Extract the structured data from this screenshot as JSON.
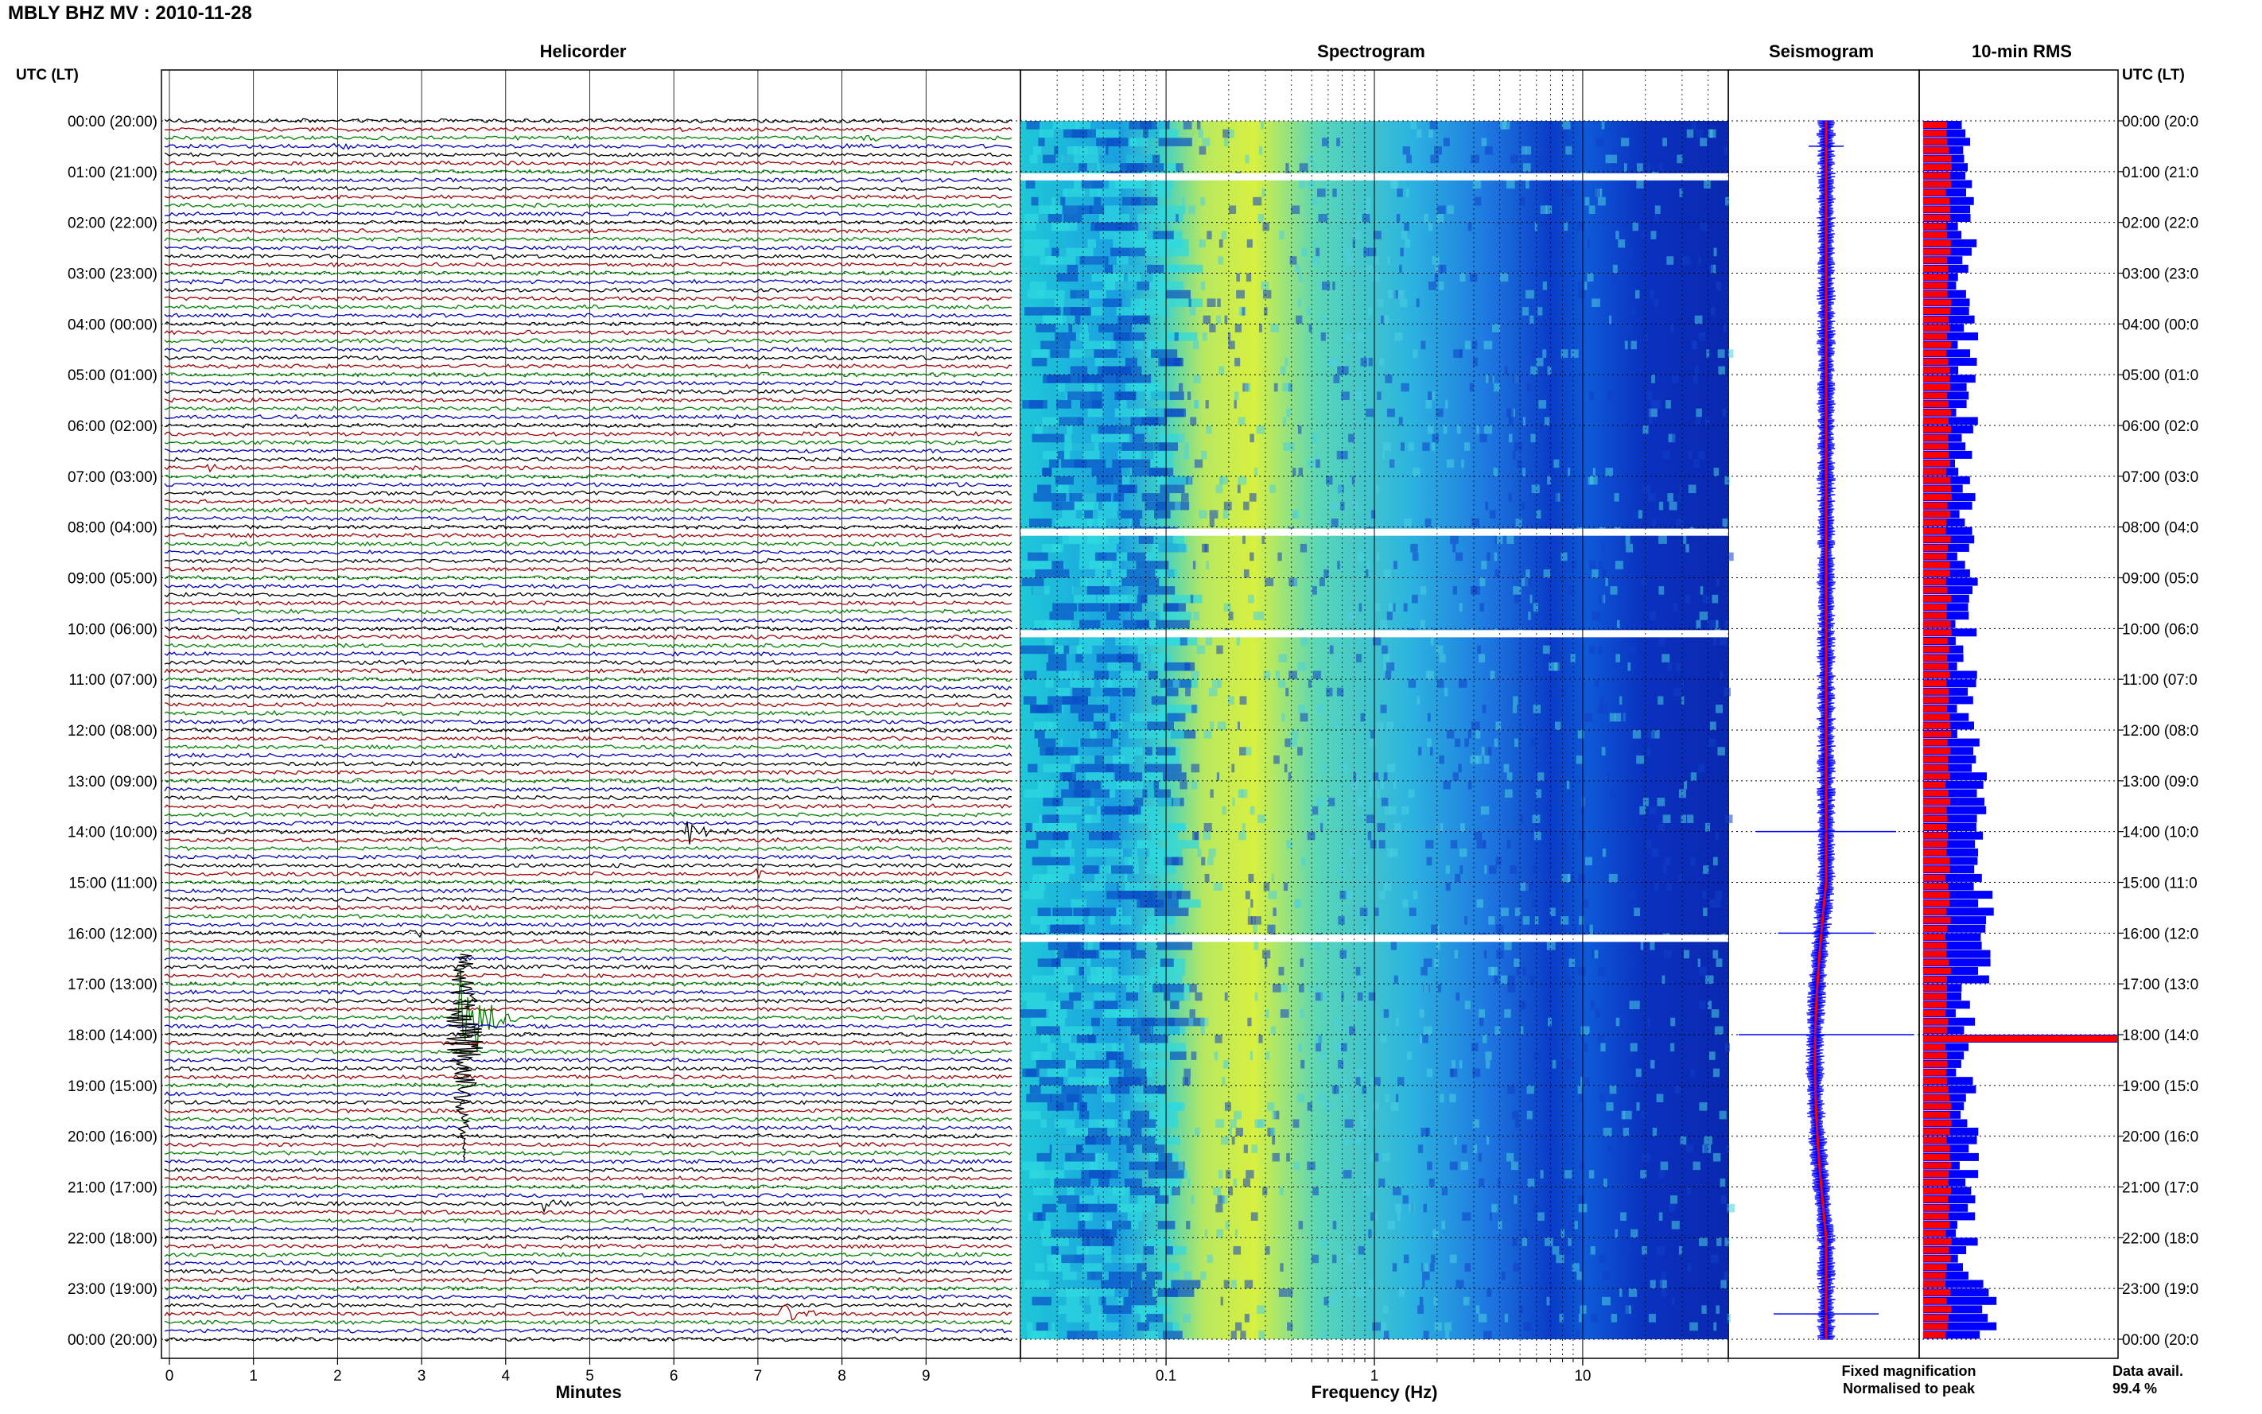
{
  "title": "MBLY BHZ MV : 2010-11-28",
  "panels": {
    "helicorder": "Helicorder",
    "spectrogram": "Spectrogram",
    "seismogram": "Seismogram",
    "rms": "10-min RMS"
  },
  "time_axis_label": "UTC (LT)",
  "time_labels": [
    "00:00 (20:00)",
    "01:00 (21:00)",
    "02:00 (22:00)",
    "03:00 (23:00)",
    "04:00 (00:00)",
    "05:00 (01:00)",
    "06:00 (02:00)",
    "07:00 (03:00)",
    "08:00 (04:00)",
    "09:00 (05:00)",
    "10:00 (06:00)",
    "11:00 (07:00)",
    "12:00 (08:00)",
    "13:00 (09:00)",
    "14:00 (10:00)",
    "15:00 (11:00)",
    "16:00 (12:00)",
    "17:00 (13:00)",
    "18:00 (14:00)",
    "19:00 (15:00)",
    "20:00 (16:00)",
    "21:00 (17:00)",
    "22:00 (18:00)",
    "23:00 (19:00)",
    "00:00 (20:00)"
  ],
  "right_time_labels": [
    "00:00 (20:0",
    "01:00 (21:0",
    "02:00 (22:0",
    "03:00 (23:0",
    "04:00 (00:0",
    "05:00 (01:0",
    "06:00 (02:0",
    "07:00 (03:0",
    "08:00 (04:0",
    "09:00 (05:0",
    "10:00 (06:0",
    "11:00 (07:0",
    "12:00 (08:0",
    "13:00 (09:0",
    "14:00 (10:0",
    "15:00 (11:0",
    "16:00 (12:0",
    "17:00 (13:0",
    "18:00 (14:0",
    "19:00 (15:0",
    "20:00 (16:0",
    "21:00 (17:0",
    "22:00 (18:0",
    "23:00 (19:0",
    "00:00 (20:0"
  ],
  "legend": {
    "fixed": "Fixed magnification",
    "normalised": "Normalised to peak",
    "fixed_color": "#0000ff",
    "normalised_color": "#ff0000"
  },
  "data_avail": {
    "label": "Data avail.",
    "value": "99.4 %"
  },
  "colors": {
    "trace": [
      "#000000",
      "#a00000",
      "#008000",
      "#0000c0"
    ],
    "rms_fixed": "#0000ff",
    "rms_norm": "#ff0000",
    "seismo_fixed": "#0000ff",
    "seismo_norm": "#ff0000"
  },
  "chart_data": [
    {
      "type": "line",
      "panel": "Helicorder",
      "xlabel": "Minutes",
      "x_ticks": [
        "0",
        "1",
        "2",
        "3",
        "4",
        "5",
        "6",
        "7",
        "8",
        "9"
      ],
      "xlim": [
        0,
        10
      ],
      "ylim_hours": [
        0,
        24
      ],
      "rows": 144,
      "row_minutes": 10,
      "events": [
        {
          "hour": 0.5,
          "minute": 2.0,
          "amp": 0.3
        },
        {
          "hour": 0.5,
          "minute": 7.8,
          "amp": 0.4
        },
        {
          "hour": 0.33,
          "minute": 8.3,
          "amp": 0.3
        },
        {
          "hour": 2.67,
          "minute": 3.9,
          "amp": 0.3
        },
        {
          "hour": 6.83,
          "minute": 0.5,
          "amp": 0.3
        },
        {
          "hour": 14.0,
          "minute": 6.2,
          "amp": 1.2
        },
        {
          "hour": 14.83,
          "minute": 7.0,
          "amp": 0.4
        },
        {
          "hour": 16.0,
          "minute": 2.9,
          "amp": 0.5
        },
        {
          "hour": 17.67,
          "minute": 3.5,
          "amp": 6.0
        },
        {
          "hour": 18.67,
          "minute": 0.2,
          "amp": 0.3
        },
        {
          "hour": 21.33,
          "minute": 4.5,
          "amp": 0.6
        },
        {
          "hour": 23.5,
          "minute": 7.3,
          "amp": 1.0
        }
      ]
    },
    {
      "type": "heatmap",
      "panel": "Spectrogram",
      "xlabel": "Frequency (Hz)",
      "x_scale": "log",
      "x_ticks": [
        "0.1",
        "1",
        "10"
      ],
      "xlim": [
        0.02,
        50
      ],
      "ylim_hours": [
        0,
        24
      ],
      "gaps_hours": [
        1.0,
        8.0,
        10.0,
        16.0
      ]
    },
    {
      "type": "line",
      "panel": "Seismogram",
      "ylim_hours": [
        0,
        24
      ],
      "fixed_spikes": [
        {
          "hour": 14.0,
          "size": 0.8
        },
        {
          "hour": 16.0,
          "size": 0.55
        },
        {
          "hour": 18.0,
          "size": 1.0
        },
        {
          "hour": 23.5,
          "size": 0.6
        },
        {
          "hour": 0.5,
          "size": 0.2
        }
      ]
    },
    {
      "type": "bar",
      "panel": "10-min RMS",
      "ylim_hours": [
        0,
        24
      ],
      "bars": 144,
      "peak_hour": 18.0
    }
  ]
}
